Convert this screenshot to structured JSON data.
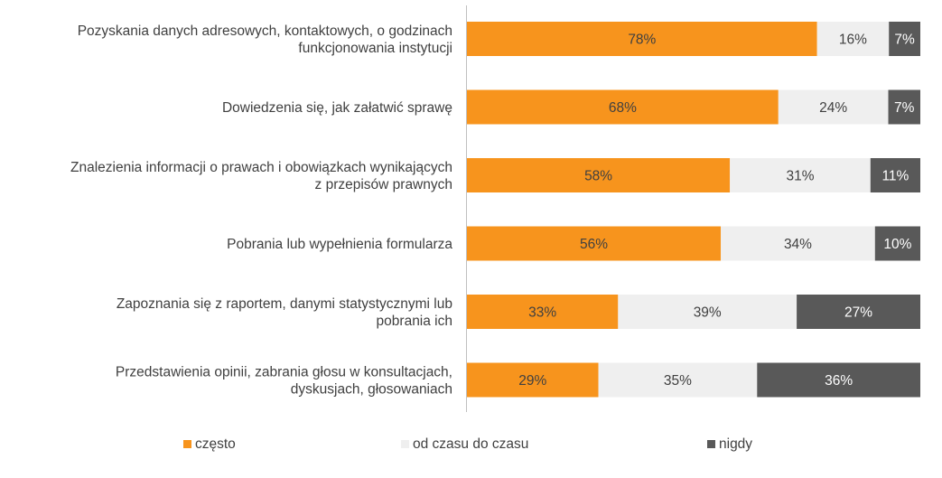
{
  "chart_data": {
    "type": "bar",
    "orientation": "horizontal",
    "stacked": true,
    "percent": true,
    "title": "",
    "xlabel": "",
    "ylabel": "",
    "xlim": [
      0,
      100
    ],
    "grid": false,
    "legend_position": "bottom",
    "categories": [
      [
        "Pozyskania danych adresowych, kontaktowych, o godzinach",
        "funkcjonowania instytucji"
      ],
      [
        "Dowiedzenia się, jak załatwić sprawę"
      ],
      [
        "Znalezienia informacji o prawach i obowiązkach wynikających",
        "z przepisów prawnych"
      ],
      [
        "Pobrania lub wypełnienia formularza"
      ],
      [
        "Zapoznania się z raportem, danymi statystycznymi lub",
        "pobrania ich"
      ],
      [
        "Przedstawienia opinii, zabrania głosu w konsultacjach,",
        "dyskusjach, głosowaniach"
      ]
    ],
    "series": [
      {
        "name": "często",
        "color": "#F7941D",
        "label_color": "#404040",
        "values": [
          78,
          68,
          58,
          56,
          33,
          29
        ]
      },
      {
        "name": "od czasu do czasu",
        "color": "#EFEFEF",
        "label_color": "#404040",
        "values": [
          16,
          24,
          31,
          34,
          39,
          35
        ]
      },
      {
        "name": "nigdy",
        "color": "#595959",
        "label_color": "#FFFFFF",
        "values": [
          7,
          7,
          11,
          10,
          27,
          36
        ]
      }
    ],
    "value_suffix": "%"
  }
}
